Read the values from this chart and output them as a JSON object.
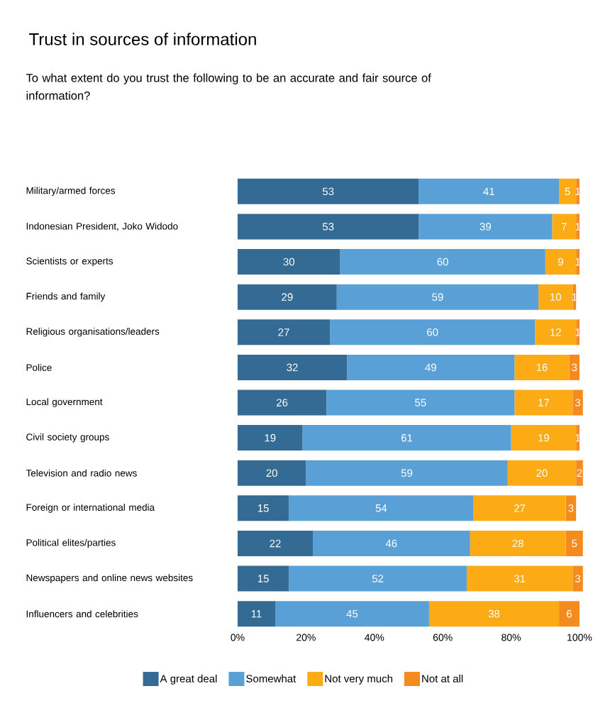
{
  "chart_data": {
    "type": "bar",
    "orientation": "horizontal",
    "stacked": true,
    "data_labels": true,
    "grid": false,
    "legend": "bottom",
    "title": "Trust in sources of information",
    "subtitle": "To what extent do you trust the following to be an accurate and fair source of information?",
    "categories": [
      "Military/armed forces",
      "Indonesian President, Joko Widodo",
      "Scientists or experts",
      "Friends and family",
      "Religious organisations/leaders",
      "Police",
      "Local government",
      "Civil society groups",
      "Television and radio news",
      "Foreign or international media",
      "Political elites/parties",
      "Newspapers and online news websites",
      "Influencers and celebrities"
    ],
    "xlim": [
      0,
      102
    ],
    "xticks": [
      {
        "value": 0,
        "label": "0%"
      },
      {
        "value": 20,
        "label": "20%"
      },
      {
        "value": 40,
        "label": "40%"
      },
      {
        "value": 60,
        "label": "60%"
      },
      {
        "value": 80,
        "label": "80%"
      },
      {
        "value": 100,
        "label": "100%"
      }
    ],
    "series": [
      {
        "name": "A great deal",
        "color": "#336b94",
        "values": [
          53,
          53,
          30,
          29,
          27,
          32,
          26,
          19,
          20,
          15,
          22,
          15,
          11
        ]
      },
      {
        "name": "Somewhat",
        "color": "#58a0d6",
        "values": [
          41,
          39,
          60,
          59,
          60,
          49,
          55,
          61,
          59,
          54,
          46,
          52,
          45
        ]
      },
      {
        "name": "Not very much",
        "color": "#fdab14",
        "values": [
          5,
          7,
          9,
          10,
          12,
          16,
          17,
          19,
          20,
          27,
          28,
          31,
          38
        ]
      },
      {
        "name": "Not at all",
        "color": "#f58b1f",
        "values": [
          1,
          1,
          1,
          1,
          1,
          3,
          3,
          1,
          2,
          3,
          5,
          3,
          6
        ]
      }
    ]
  }
}
